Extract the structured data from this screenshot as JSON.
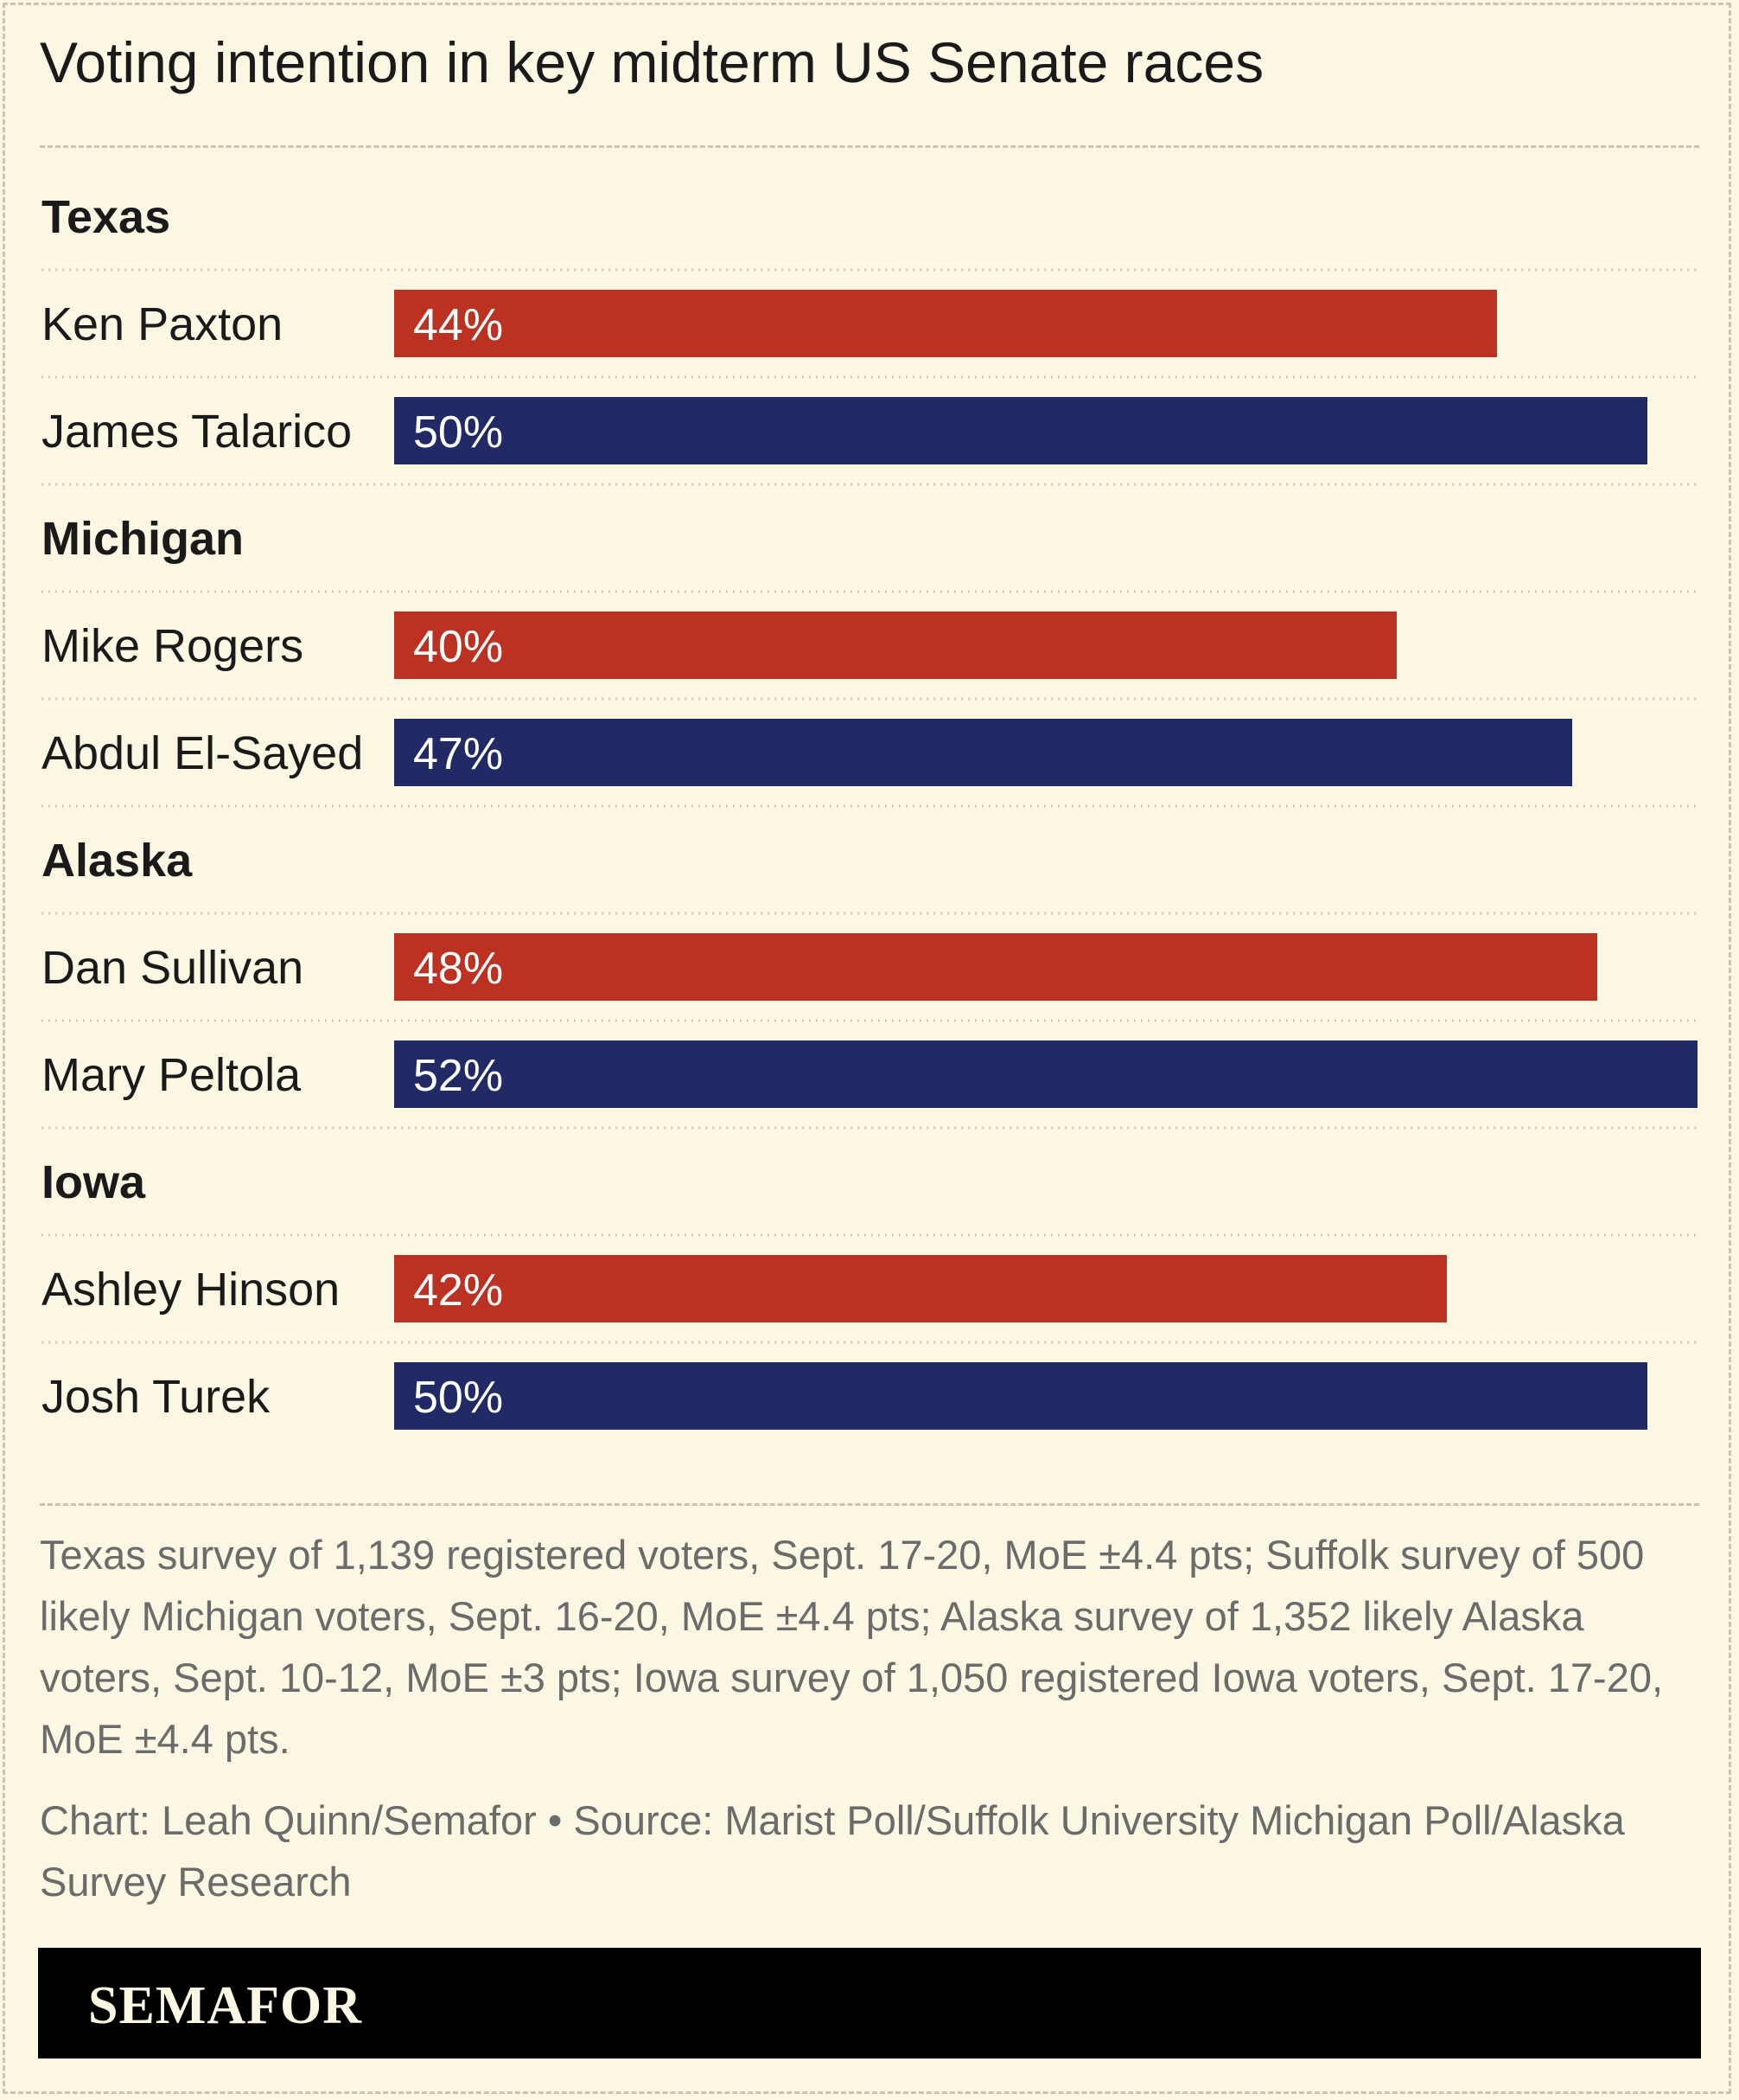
{
  "title": "Voting intention in key midterm US Senate races",
  "colors": {
    "republican": "#bb3222",
    "democrat": "#222a66",
    "background": "#fbf7e2",
    "muted_text": "#6b6b6b"
  },
  "chart_data": {
    "type": "bar",
    "orientation": "horizontal",
    "value_suffix": "%",
    "xlim": [
      0,
      52
    ],
    "grid": false,
    "races": [
      {
        "state": "Texas",
        "candidates": [
          {
            "name": "Ken Paxton",
            "value": 44,
            "label": "44%",
            "party": "republican"
          },
          {
            "name": "James Talarico",
            "value": 50,
            "label": "50%",
            "party": "democrat"
          }
        ]
      },
      {
        "state": "Michigan",
        "candidates": [
          {
            "name": "Mike Rogers",
            "value": 40,
            "label": "40%",
            "party": "republican"
          },
          {
            "name": "Abdul El-Sayed",
            "value": 47,
            "label": "47%",
            "party": "democrat"
          }
        ]
      },
      {
        "state": "Alaska",
        "candidates": [
          {
            "name": "Dan Sullivan",
            "value": 48,
            "label": "48%",
            "party": "republican"
          },
          {
            "name": "Mary Peltola",
            "value": 52,
            "label": "52%",
            "party": "democrat"
          }
        ]
      },
      {
        "state": "Iowa",
        "candidates": [
          {
            "name": "Ashley Hinson",
            "value": 42,
            "label": "42%",
            "party": "republican"
          },
          {
            "name": "Josh Turek",
            "value": 50,
            "label": "50%",
            "party": "democrat"
          }
        ]
      }
    ]
  },
  "notes": "Texas survey of 1,139 registered voters, Sept. 17-20, MoE ±4.4 pts; Suffolk survey of 500 likely Michigan voters, Sept. 16-20, MoE ±4.4 pts; Alaska survey of 1,352 likely Alaska voters, Sept. 10-12, MoE ±3 pts; Iowa survey of 1,050 registered Iowa voters, Sept. 17-20, MoE ±4.4 pts.",
  "credit": "Chart: Leah Quinn/Semafor • Source: Marist Poll/Suffolk University Michigan Poll/Alaska Survey Research",
  "logo": "SEMAFOR"
}
